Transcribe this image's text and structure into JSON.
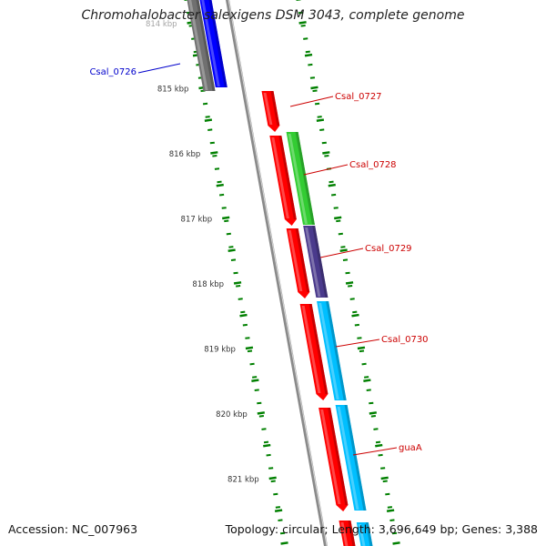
{
  "title": "Chromohalobacter salexigens DSM 3043, complete genome",
  "footer": {
    "accession": "Accession: NC_007963",
    "summary": "Topology: circular; Length: 3,696,649 bp; Genes: 3,388"
  },
  "colors": {
    "backbone": "#8a8a8a",
    "tick": "#008000",
    "ruler_text": "#333333",
    "label_blue": "#0000cc",
    "label_red": "#cc0000",
    "red": "#ff0000",
    "blue": "#0000ff",
    "gray": "#707070",
    "green": "#33cc33",
    "purple": "#4a3a8c",
    "cyan": "#00bfff"
  },
  "ruler": [
    {
      "label": "814 kbp",
      "kbp": 814
    },
    {
      "label": "815 kbp",
      "kbp": 815
    },
    {
      "label": "816 kbp",
      "kbp": 816
    },
    {
      "label": "817 kbp",
      "kbp": 817
    },
    {
      "label": "818 kbp",
      "kbp": 818
    },
    {
      "label": "819 kbp",
      "kbp": 819
    },
    {
      "label": "820 kbp",
      "kbp": 820
    },
    {
      "label": "821 kbp",
      "kbp": 821
    }
  ],
  "genes": [
    {
      "label": "Csal_0726",
      "color": "blue",
      "label_color": "label_blue"
    },
    {
      "label": "Csal_0727",
      "color": "red",
      "label_color": "label_red"
    },
    {
      "label": "Csal_0728",
      "color": "red",
      "label_color": "label_red"
    },
    {
      "label": "Csal_0729",
      "color": "red",
      "label_color": "label_red"
    },
    {
      "label": "Csal_0730",
      "color": "red",
      "label_color": "label_red"
    },
    {
      "label": "guaA",
      "color": "red",
      "label_color": "label_red"
    }
  ]
}
